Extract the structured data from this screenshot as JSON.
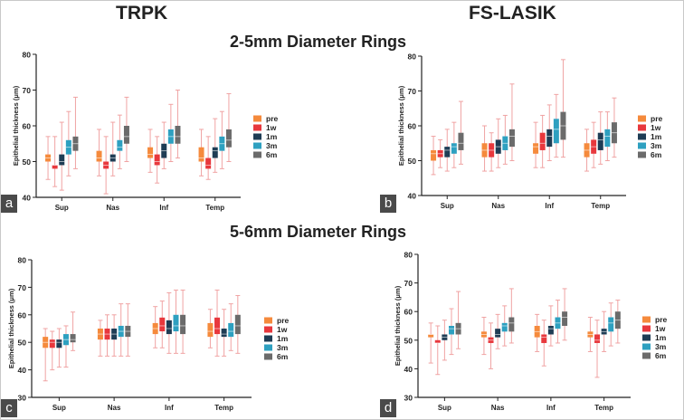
{
  "titles": {
    "left_column": "TRPK",
    "right_column": "FS-LASIK",
    "top_row": "2-5mm Diameter Rings",
    "bottom_row": "5-6mm Diameter Rings"
  },
  "colors": {
    "pre": "#f58a3c",
    "1w": "#e8383d",
    "1m": "#1f3d55",
    "3m": "#2ea0c0",
    "6m": "#6b6b6b"
  },
  "chart_data": [
    {
      "id": "a",
      "panel_letter": "a",
      "type": "box",
      "ylabel": "Epithelial thickness (μm)",
      "ylim": [
        40,
        80
      ],
      "yticks": [
        40,
        50,
        60,
        70,
        80
      ],
      "categories": [
        "Sup",
        "Nas",
        "Inf",
        "Temp"
      ],
      "legend": [
        "pre",
        "1w",
        "1m",
        "3m",
        "6m"
      ],
      "boxes": [
        [
          {
            "min": 45,
            "q1": 50,
            "med": 51,
            "q3": 52,
            "max": 57
          },
          {
            "min": 43,
            "q1": 48,
            "med": 49,
            "q3": 49,
            "max": 57
          },
          {
            "min": 42,
            "q1": 49,
            "med": 50,
            "q3": 52,
            "max": 61
          },
          {
            "min": 46,
            "q1": 52,
            "med": 54,
            "q3": 56,
            "max": 64
          },
          {
            "min": 48,
            "q1": 53,
            "med": 55,
            "q3": 57,
            "max": 68
          }
        ],
        [
          {
            "min": 46,
            "q1": 50,
            "med": 51,
            "q3": 53,
            "max": 59
          },
          {
            "min": 41,
            "q1": 48,
            "med": 49,
            "q3": 50,
            "max": 57
          },
          {
            "min": 46,
            "q1": 50,
            "med": 51,
            "q3": 52,
            "max": 61
          },
          {
            "min": 48,
            "q1": 53,
            "med": 54,
            "q3": 56,
            "max": 63
          },
          {
            "min": 50,
            "q1": 55,
            "med": 57,
            "q3": 60,
            "max": 68
          }
        ],
        [
          {
            "min": 47,
            "q1": 51,
            "med": 52,
            "q3": 54,
            "max": 59
          },
          {
            "min": 44,
            "q1": 49,
            "med": 50,
            "q3": 52,
            "max": 57
          },
          {
            "min": 48,
            "q1": 51,
            "med": 53,
            "q3": 55,
            "max": 61
          },
          {
            "min": 50,
            "q1": 55,
            "med": 57,
            "q3": 59,
            "max": 66
          },
          {
            "min": 51,
            "q1": 55,
            "med": 57,
            "q3": 60,
            "max": 70
          }
        ],
        [
          {
            "min": 46,
            "q1": 50,
            "med": 51,
            "q3": 54,
            "max": 59
          },
          {
            "min": 45,
            "q1": 48,
            "med": 49,
            "q3": 51,
            "max": 57
          },
          {
            "min": 47,
            "q1": 51,
            "med": 53,
            "q3": 54,
            "max": 62
          },
          {
            "min": 48,
            "q1": 53,
            "med": 55,
            "q3": 57,
            "max": 64
          },
          {
            "min": 50,
            "q1": 54,
            "med": 56,
            "q3": 59,
            "max": 69
          }
        ]
      ]
    },
    {
      "id": "b",
      "panel_letter": "b",
      "type": "box",
      "ylabel": "Epithelial thickness (μm)",
      "ylim": [
        40,
        80
      ],
      "yticks": [
        40,
        50,
        60,
        70,
        80
      ],
      "categories": [
        "Sup",
        "Nas",
        "Inf",
        "Temp"
      ],
      "legend": [
        "pre",
        "1w",
        "1m",
        "3m",
        "6m"
      ],
      "boxes": [
        [
          {
            "min": 46,
            "q1": 50,
            "med": 52,
            "q3": 53,
            "max": 57
          },
          {
            "min": 48,
            "q1": 51,
            "med": 52,
            "q3": 53,
            "max": 56
          },
          {
            "min": 47,
            "q1": 51,
            "med": 53,
            "q3": 54,
            "max": 59
          },
          {
            "min": 48,
            "q1": 52,
            "med": 54,
            "q3": 55,
            "max": 61
          },
          {
            "min": 49,
            "q1": 53,
            "med": 55,
            "q3": 58,
            "max": 67
          }
        ],
        [
          {
            "min": 47,
            "q1": 51,
            "med": 53,
            "q3": 55,
            "max": 60
          },
          {
            "min": 47,
            "q1": 51,
            "med": 53,
            "q3": 55,
            "max": 58
          },
          {
            "min": 48,
            "q1": 52,
            "med": 54,
            "q3": 56,
            "max": 62
          },
          {
            "min": 49,
            "q1": 53,
            "med": 55,
            "q3": 57,
            "max": 63
          },
          {
            "min": 50,
            "q1": 54,
            "med": 57,
            "q3": 59,
            "max": 72
          }
        ],
        [
          {
            "min": 48,
            "q1": 52,
            "med": 54,
            "q3": 55,
            "max": 61
          },
          {
            "min": 48,
            "q1": 53,
            "med": 55,
            "q3": 58,
            "max": 63
          },
          {
            "min": 50,
            "q1": 54,
            "med": 57,
            "q3": 59,
            "max": 66
          },
          {
            "min": 51,
            "q1": 55,
            "med": 59,
            "q3": 62,
            "max": 69
          },
          {
            "min": 51,
            "q1": 56,
            "med": 60,
            "q3": 64,
            "max": 79
          }
        ],
        [
          {
            "min": 47,
            "q1": 51,
            "med": 53,
            "q3": 55,
            "max": 59
          },
          {
            "min": 48,
            "q1": 52,
            "med": 54,
            "q3": 56,
            "max": 61
          },
          {
            "min": 49,
            "q1": 53,
            "med": 56,
            "q3": 58,
            "max": 64
          },
          {
            "min": 50,
            "q1": 54,
            "med": 57,
            "q3": 59,
            "max": 64
          },
          {
            "min": 51,
            "q1": 55,
            "med": 58,
            "q3": 61,
            "max": 68
          }
        ]
      ]
    },
    {
      "id": "c",
      "panel_letter": "c",
      "type": "box",
      "ylabel": "Epithelial thickness (μm)",
      "ylim": [
        30,
        80
      ],
      "yticks": [
        30,
        40,
        50,
        60,
        70,
        80
      ],
      "categories": [
        "Sup",
        "Nas",
        "Inf",
        "Temp"
      ],
      "legend": [
        "pre",
        "1w",
        "1m",
        "3m",
        "6m"
      ],
      "boxes": [
        [
          {
            "min": 36,
            "q1": 48,
            "med": 50,
            "q3": 52,
            "max": 55
          },
          {
            "min": 40,
            "q1": 48,
            "med": 50,
            "q3": 51,
            "max": 54
          },
          {
            "min": 41,
            "q1": 48,
            "med": 50,
            "q3": 51,
            "max": 55
          },
          {
            "min": 41,
            "q1": 49,
            "med": 51,
            "q3": 53,
            "max": 56
          },
          {
            "min": 47,
            "q1": 50,
            "med": 51,
            "q3": 53,
            "max": 61
          }
        ],
        [
          {
            "min": 45,
            "q1": 51,
            "med": 53,
            "q3": 55,
            "max": 58
          },
          {
            "min": 45,
            "q1": 51,
            "med": 53,
            "q3": 55,
            "max": 60
          },
          {
            "min": 45,
            "q1": 51,
            "med": 53,
            "q3": 55,
            "max": 60
          },
          {
            "min": 45,
            "q1": 52,
            "med": 54,
            "q3": 56,
            "max": 64
          },
          {
            "min": 45,
            "q1": 52,
            "med": 54,
            "q3": 56,
            "max": 64
          }
        ],
        [
          {
            "min": 48,
            "q1": 53,
            "med": 55,
            "q3": 57,
            "max": 63
          },
          {
            "min": 48,
            "q1": 54,
            "med": 56,
            "q3": 59,
            "max": 65
          },
          {
            "min": 46,
            "q1": 53,
            "med": 55,
            "q3": 58,
            "max": 68
          },
          {
            "min": 46,
            "q1": 54,
            "med": 56,
            "q3": 60,
            "max": 69
          },
          {
            "min": 46,
            "q1": 53,
            "med": 56,
            "q3": 60,
            "max": 69
          }
        ],
        [
          {
            "min": 48,
            "q1": 52,
            "med": 54,
            "q3": 57,
            "max": 62
          },
          {
            "min": 45,
            "q1": 53,
            "med": 55,
            "q3": 59,
            "max": 69
          },
          {
            "min": 45,
            "q1": 52,
            "med": 53,
            "q3": 55,
            "max": 62
          },
          {
            "min": 47,
            "q1": 52,
            "med": 54,
            "q3": 57,
            "max": 64
          },
          {
            "min": 46,
            "q1": 53,
            "med": 56,
            "q3": 60,
            "max": 67
          }
        ]
      ]
    },
    {
      "id": "d",
      "panel_letter": "d",
      "type": "box",
      "ylabel": "Epithelial thickness (μm)",
      "ylim": [
        30,
        80
      ],
      "yticks": [
        30,
        40,
        50,
        60,
        70,
        80
      ],
      "categories": [
        "Sup",
        "Nas",
        "Inf",
        "Temp"
      ],
      "legend": [
        "pre",
        "1w",
        "1m",
        "3m",
        "6m"
      ],
      "boxes": [
        [
          {
            "min": 42,
            "q1": 51,
            "med": 52,
            "q3": 52,
            "max": 56
          },
          {
            "min": 38,
            "q1": 49,
            "med": 49,
            "q3": 50,
            "max": 55
          },
          {
            "min": 43,
            "q1": 50,
            "med": 51,
            "q3": 52,
            "max": 57
          },
          {
            "min": 45,
            "q1": 52,
            "med": 54,
            "q3": 55,
            "max": 61
          },
          {
            "min": 47,
            "q1": 52,
            "med": 54,
            "q3": 56,
            "max": 67
          }
        ],
        [
          {
            "min": 45,
            "q1": 51,
            "med": 52,
            "q3": 53,
            "max": 58
          },
          {
            "min": 40,
            "q1": 49,
            "med": 50,
            "q3": 51,
            "max": 56
          },
          {
            "min": 47,
            "q1": 51,
            "med": 52,
            "q3": 54,
            "max": 59
          },
          {
            "min": 48,
            "q1": 53,
            "med": 55,
            "q3": 56,
            "max": 62
          },
          {
            "min": 49,
            "q1": 53,
            "med": 56,
            "q3": 58,
            "max": 68
          }
        ],
        [
          {
            "min": 46,
            "q1": 51,
            "med": 53,
            "q3": 55,
            "max": 59
          },
          {
            "min": 41,
            "q1": 49,
            "med": 51,
            "q3": 52,
            "max": 57
          },
          {
            "min": 48,
            "q1": 52,
            "med": 54,
            "q3": 55,
            "max": 62
          },
          {
            "min": 49,
            "q1": 54,
            "med": 56,
            "q3": 58,
            "max": 64
          },
          {
            "min": 50,
            "q1": 55,
            "med": 58,
            "q3": 60,
            "max": 68
          }
        ],
        [
          {
            "min": 46,
            "q1": 51,
            "med": 52,
            "q3": 53,
            "max": 58
          },
          {
            "min": 37,
            "q1": 49,
            "med": 50,
            "q3": 52,
            "max": 57
          },
          {
            "min": 46,
            "q1": 52,
            "med": 53,
            "q3": 54,
            "max": 60
          },
          {
            "min": 48,
            "q1": 53,
            "med": 56,
            "q3": 58,
            "max": 63
          },
          {
            "min": 49,
            "q1": 54,
            "med": 57,
            "q3": 60,
            "max": 64
          }
        ]
      ]
    }
  ]
}
